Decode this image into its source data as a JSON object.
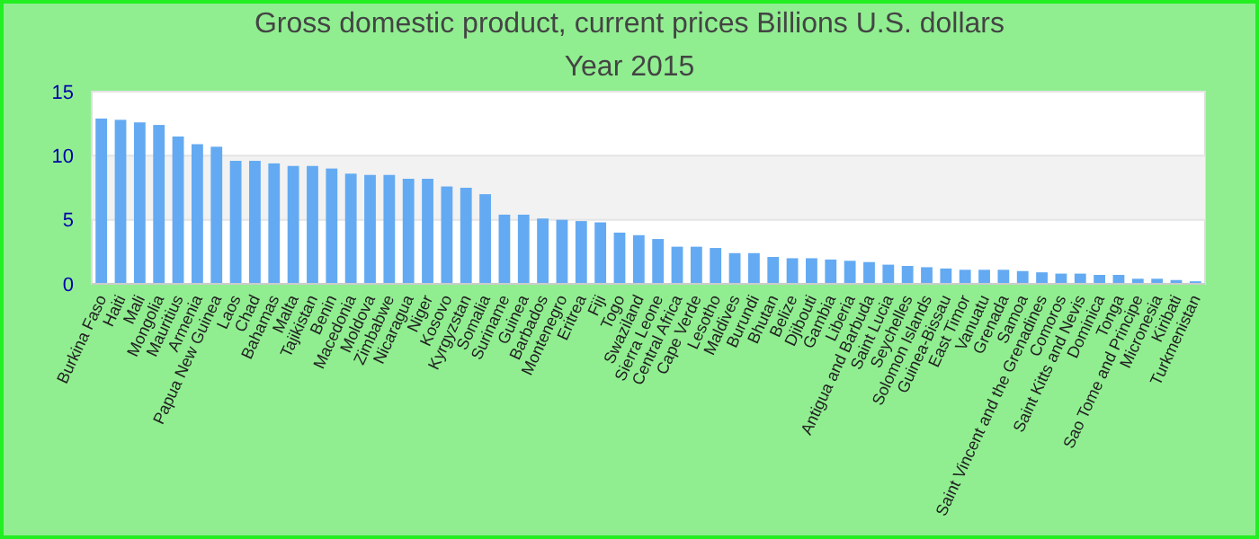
{
  "chart_data": {
    "type": "bar",
    "title": "Gross domestic product, current prices Billions U.S. dollars",
    "subtitle": "Year 2015",
    "categories": [
      "Burkina Faso",
      "Haiti",
      "Mali",
      "Mongolia",
      "Mauritius",
      "Armenia",
      "Papua New Guinea",
      "Laos",
      "Chad",
      "Bahamas",
      "Malta",
      "Tajikistan",
      "Benin",
      "Macedonia",
      "Moldova",
      "Zimbabwe",
      "Nicaragua",
      "Niger",
      "Kosovo",
      "Kyrgyzstan",
      "Somalia",
      "Suriname",
      "Guinea",
      "Barbados",
      "Montenegro",
      "Eritrea",
      "Fiji",
      "Togo",
      "Swaziland",
      "Sierra Leone",
      "Central Africa",
      "Cape Verde",
      "Lesotho",
      "Maldives",
      "Burundi",
      "Bhutan",
      "Belize",
      "Djibouti",
      "Gambia",
      "Liberia",
      "Antigua and Barbuda",
      "Saint Lucia",
      "Seychelles",
      "Solomon Islands",
      "Guinea-Bissau",
      "East Timor",
      "Vanuatu",
      "Grenada",
      "Samoa",
      "Saint Vincent and the Grenadines",
      "Comoros",
      "Saint Kitts and Nevis",
      "Dominica",
      "Tonga",
      "Sao Tome and Principe",
      "Micronesia",
      "Kiribati",
      "Turkmenistan"
    ],
    "values": [
      12.9,
      12.8,
      12.6,
      12.4,
      11.5,
      10.9,
      10.7,
      9.6,
      9.6,
      9.4,
      9.2,
      9.2,
      9.0,
      8.6,
      8.5,
      8.5,
      8.2,
      8.2,
      7.6,
      7.5,
      7.0,
      5.4,
      5.4,
      5.1,
      5.0,
      4.9,
      4.8,
      4.0,
      3.8,
      3.5,
      2.9,
      2.9,
      2.8,
      2.4,
      2.4,
      2.1,
      2.0,
      2.0,
      1.9,
      1.8,
      1.7,
      1.5,
      1.4,
      1.3,
      1.2,
      1.1,
      1.1,
      1.1,
      1.0,
      0.9,
      0.8,
      0.8,
      0.7,
      0.7,
      0.4,
      0.4,
      0.3,
      0.2
    ],
    "color": "#63aaf2",
    "ylim": [
      0,
      15
    ],
    "yticks": [
      0,
      5,
      10,
      15
    ],
    "grid": true
  }
}
